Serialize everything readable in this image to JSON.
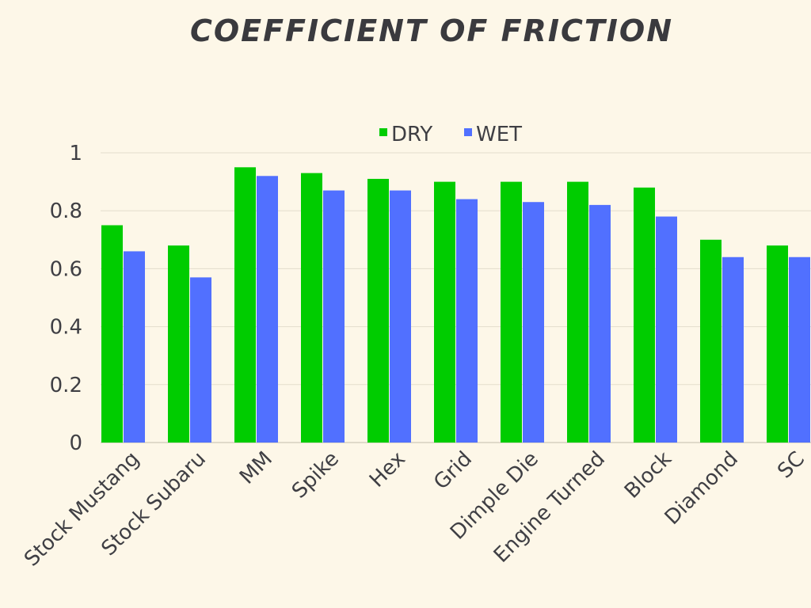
{
  "chart_data": {
    "type": "bar",
    "title": "COEFFICIENT OF FRICTION",
    "xlabel": "",
    "ylabel": "",
    "categories": [
      "Stock Mustang",
      "Stock Subaru",
      "MM",
      "Spike",
      "Hex",
      "Grid",
      "Dimple Die",
      "Engine Turned",
      "Block",
      "Diamond",
      "SC"
    ],
    "series": [
      {
        "name": "DRY",
        "color": "#00cc00",
        "values": [
          0.75,
          0.68,
          0.95,
          0.93,
          0.91,
          0.9,
          0.9,
          0.9,
          0.88,
          0.7,
          0.68
        ]
      },
      {
        "name": "WET",
        "color": "#5170ff",
        "values": [
          0.66,
          0.57,
          0.92,
          0.87,
          0.87,
          0.84,
          0.83,
          0.82,
          0.78,
          0.64,
          0.64
        ]
      }
    ],
    "ylim": [
      0,
      1
    ],
    "yticks": [
      "0",
      "0.2",
      "0.4",
      "0.6",
      "0.8",
      "1"
    ],
    "grid": true,
    "legend_position": "top-center"
  }
}
